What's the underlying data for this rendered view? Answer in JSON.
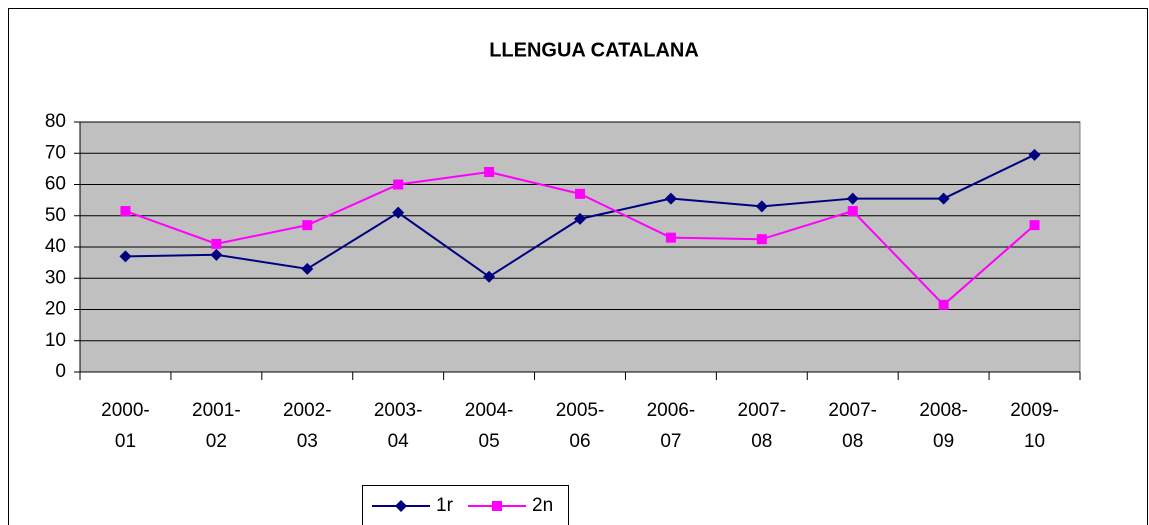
{
  "chart_data": {
    "type": "line",
    "title": "LLENGUA CATALANA",
    "categories": [
      "2000-01",
      "2001-02",
      "2002-03",
      "2003-04",
      "2004-05",
      "2005-06",
      "2006-07",
      "2007-08",
      "2007-08",
      "2008-09",
      "2009-10"
    ],
    "series": [
      {
        "name": "1r",
        "color": "#000080",
        "marker": "diamond",
        "values": [
          37,
          37.5,
          33,
          51,
          30.5,
          49,
          55.5,
          53,
          55.5,
          55.5,
          69.5
        ]
      },
      {
        "name": "2n",
        "color": "#ff00ff",
        "marker": "square",
        "values": [
          51.5,
          41,
          47,
          60,
          64,
          57,
          43,
          42.5,
          51.5,
          21.5,
          47
        ]
      }
    ],
    "ylim": [
      0,
      80
    ],
    "yticks": [
      0,
      10,
      20,
      30,
      40,
      50,
      60,
      70,
      80
    ],
    "grid": true,
    "legend": "bottom"
  }
}
